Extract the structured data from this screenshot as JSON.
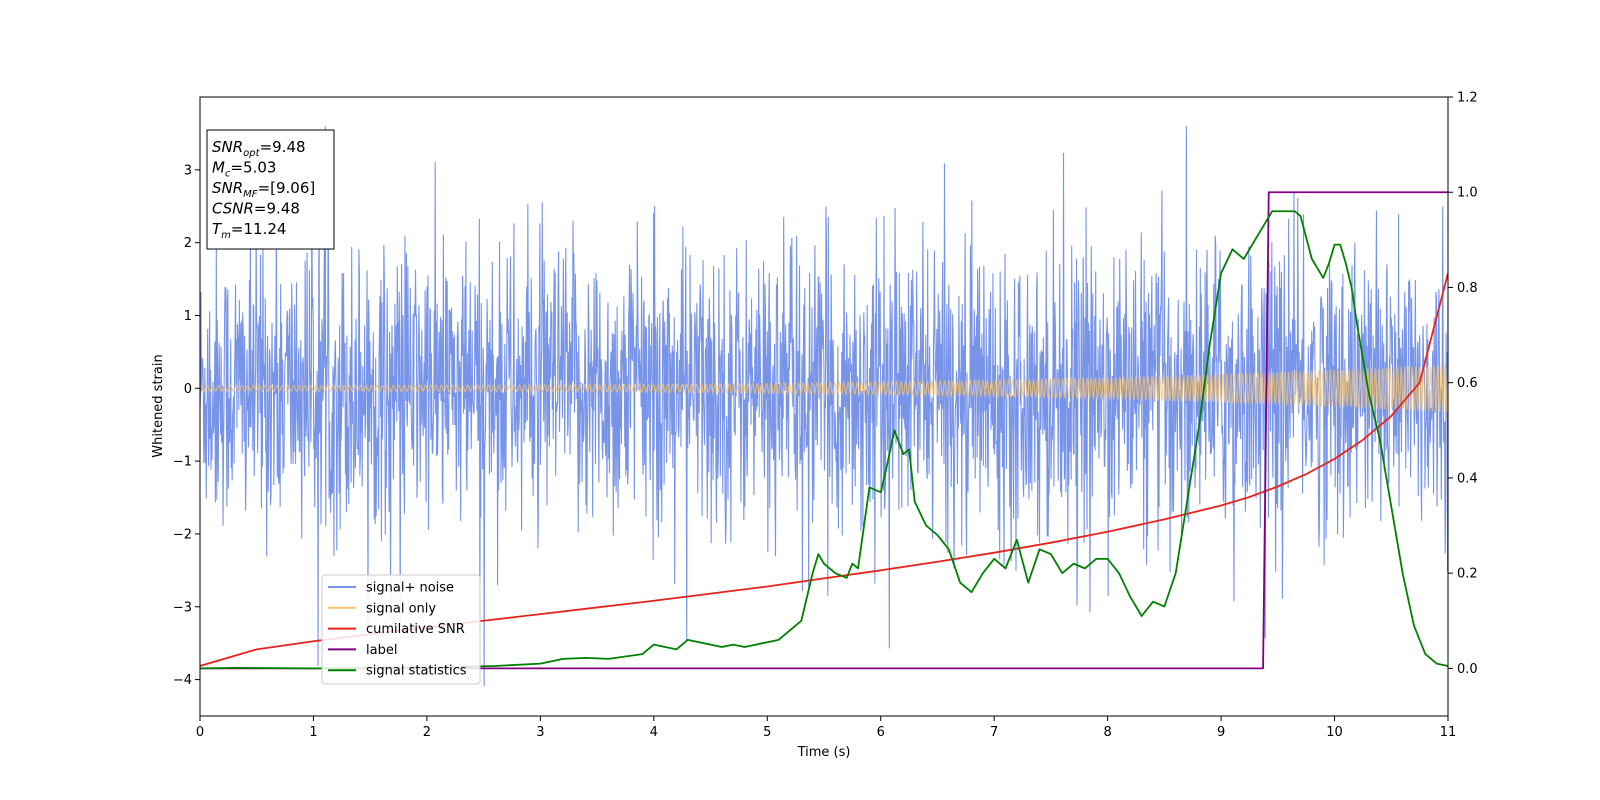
{
  "chart_data": {
    "type": "line",
    "xlabel": "Time (s)",
    "ylabel": "Whitened strain",
    "xlim": [
      0,
      11
    ],
    "ylim": [
      -4.5,
      4.0
    ],
    "y2lim": [
      -0.1,
      1.2
    ],
    "x_ticks": [
      0,
      1,
      2,
      3,
      4,
      5,
      6,
      7,
      8,
      9,
      10,
      11
    ],
    "y_ticks": [
      -4,
      -3,
      -2,
      -1,
      0,
      1,
      2,
      3
    ],
    "y_tick_labels": [
      "−4",
      "−3",
      "−2",
      "−1",
      "0",
      "1",
      "2",
      "3"
    ],
    "y2_ticks": [
      0.0,
      0.2,
      0.4,
      0.6,
      0.8,
      1.0,
      1.2
    ],
    "y2_tick_labels": [
      "0.0",
      "0.2",
      "0.4",
      "0.6",
      "0.8",
      "1.0",
      "1.2"
    ],
    "grid": false,
    "legend_position": "lower-left",
    "annotation": {
      "lines": [
        {
          "base": "SNR",
          "sub": "opt",
          "value": "=9.48"
        },
        {
          "base": "M",
          "sub": "c",
          "value": "=5.03"
        },
        {
          "base": "SNR",
          "sub": "MF",
          "value": "=[9.06]"
        },
        {
          "base": "CSNR",
          "sub": "",
          "value": "=9.48"
        },
        {
          "base": "T",
          "sub": "m",
          "value": "=11.24"
        }
      ]
    },
    "series": [
      {
        "name": "signal+ noise",
        "axis": "left",
        "color": "#7894e8",
        "approx": {
          "x_start": 0,
          "x_end": 11,
          "noise_sigma": 1.0,
          "typical_min": -2.2,
          "typical_max": 2.4,
          "peak_max": 3.6,
          "peak_min": -4.15
        }
      },
      {
        "name": "signal only",
        "axis": "left",
        "color": "#f5c16c",
        "approx": {
          "x_start": 0,
          "x_end": 11,
          "amplitude_start": 0.04,
          "amplitude_end": 0.33,
          "shape": "chirp"
        }
      },
      {
        "name": "cumilative SNR",
        "axis": "right",
        "color": "#e8231c",
        "x": [
          0,
          0.5,
          1,
          1.5,
          2,
          2.5,
          3,
          3.5,
          4,
          4.5,
          5,
          5.5,
          6,
          6.5,
          7,
          7.5,
          8,
          8.5,
          9,
          9.25,
          9.5,
          9.75,
          10,
          10.25,
          10.5,
          10.75,
          11
        ],
        "values": [
          0.005,
          0.04,
          0.057,
          0.072,
          0.086,
          0.1,
          0.114,
          0.128,
          0.142,
          0.157,
          0.172,
          0.189,
          0.206,
          0.224,
          0.243,
          0.264,
          0.287,
          0.313,
          0.342,
          0.36,
          0.382,
          0.408,
          0.44,
          0.48,
          0.53,
          0.6,
          0.83
        ]
      },
      {
        "name": "label",
        "axis": "right",
        "color": "#800080",
        "x": [
          0,
          9.37,
          9.42,
          11
        ],
        "values": [
          0.0,
          0.0,
          1.0,
          1.0
        ]
      },
      {
        "name": "signal statistics",
        "axis": "right",
        "color": "#008000",
        "x": [
          0,
          0.3,
          1.0,
          2.0,
          2.6,
          3.0,
          3.2,
          3.4,
          3.6,
          3.9,
          4.0,
          4.2,
          4.3,
          4.5,
          4.6,
          4.7,
          4.8,
          4.9,
          5.0,
          5.1,
          5.2,
          5.3,
          5.4,
          5.45,
          5.5,
          5.6,
          5.7,
          5.75,
          5.8,
          5.9,
          6.0,
          6.05,
          6.12,
          6.2,
          6.25,
          6.3,
          6.4,
          6.5,
          6.6,
          6.7,
          6.8,
          6.9,
          7.0,
          7.1,
          7.2,
          7.3,
          7.4,
          7.5,
          7.6,
          7.7,
          7.8,
          7.9,
          8.0,
          8.1,
          8.2,
          8.3,
          8.4,
          8.5,
          8.6,
          8.7,
          8.8,
          8.9,
          9.0,
          9.1,
          9.2,
          9.3,
          9.4,
          9.45,
          9.5,
          9.55,
          9.6,
          9.65,
          9.7,
          9.8,
          9.85,
          9.9,
          9.95,
          10.0,
          10.05,
          10.1,
          10.15,
          10.2,
          10.3,
          10.4,
          10.5,
          10.6,
          10.7,
          10.8,
          10.9,
          11.0
        ],
        "values": [
          0.0,
          0.001,
          0.0,
          0.002,
          0.005,
          0.01,
          0.02,
          0.022,
          0.02,
          0.03,
          0.05,
          0.04,
          0.06,
          0.05,
          0.045,
          0.05,
          0.045,
          0.05,
          0.055,
          0.06,
          0.08,
          0.1,
          0.2,
          0.24,
          0.22,
          0.2,
          0.19,
          0.22,
          0.21,
          0.38,
          0.37,
          0.42,
          0.5,
          0.45,
          0.46,
          0.35,
          0.3,
          0.28,
          0.25,
          0.18,
          0.16,
          0.2,
          0.23,
          0.21,
          0.27,
          0.18,
          0.25,
          0.24,
          0.2,
          0.22,
          0.21,
          0.23,
          0.23,
          0.2,
          0.15,
          0.11,
          0.14,
          0.13,
          0.2,
          0.35,
          0.5,
          0.68,
          0.83,
          0.88,
          0.86,
          0.9,
          0.94,
          0.96,
          0.96,
          0.96,
          0.96,
          0.96,
          0.95,
          0.86,
          0.84,
          0.82,
          0.85,
          0.89,
          0.89,
          0.85,
          0.8,
          0.72,
          0.58,
          0.48,
          0.34,
          0.2,
          0.09,
          0.03,
          0.01,
          0.005
        ]
      }
    ]
  }
}
